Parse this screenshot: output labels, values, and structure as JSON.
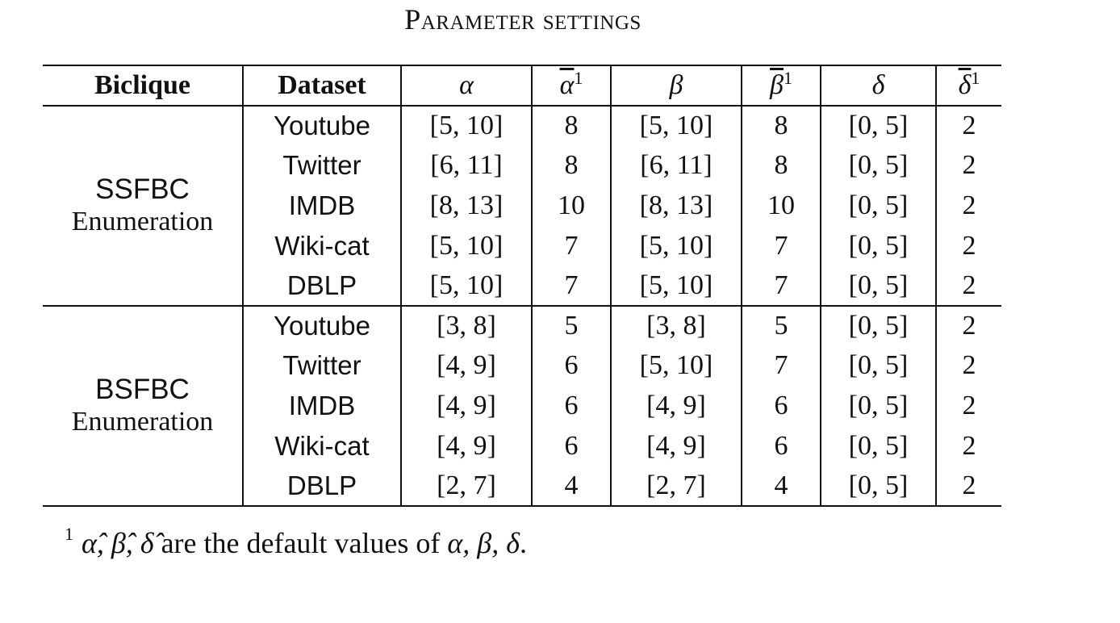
{
  "caption": "Parameter settings",
  "table": {
    "headers": {
      "biclique": "Biclique",
      "dataset": "Dataset",
      "alpha": "α",
      "alpha_bar": "α",
      "beta": "β",
      "beta_bar": "β",
      "delta": "δ",
      "delta_bar": "δ",
      "footnote_mark": "1"
    },
    "groups": [
      {
        "name": "SSFBC",
        "sub": "Enumeration",
        "rows": [
          {
            "dataset": "Youtube",
            "alpha": "[5, 10]",
            "alpha_bar": "8",
            "beta": "[5, 10]",
            "beta_bar": "8",
            "delta": "[0, 5]",
            "delta_bar": "2"
          },
          {
            "dataset": "Twitter",
            "alpha": "[6, 11]",
            "alpha_bar": "8",
            "beta": "[6, 11]",
            "beta_bar": "8",
            "delta": "[0, 5]",
            "delta_bar": "2"
          },
          {
            "dataset": "IMDB",
            "alpha": "[8, 13]",
            "alpha_bar": "10",
            "beta": "[8, 13]",
            "beta_bar": "10",
            "delta": "[0, 5]",
            "delta_bar": "2"
          },
          {
            "dataset": "Wiki-cat",
            "alpha": "[5, 10]",
            "alpha_bar": "7",
            "beta": "[5, 10]",
            "beta_bar": "7",
            "delta": "[0, 5]",
            "delta_bar": "2"
          },
          {
            "dataset": "DBLP",
            "alpha": "[5, 10]",
            "alpha_bar": "7",
            "beta": "[5, 10]",
            "beta_bar": "7",
            "delta": "[0, 5]",
            "delta_bar": "2"
          }
        ]
      },
      {
        "name": "BSFBC",
        "sub": "Enumeration",
        "rows": [
          {
            "dataset": "Youtube",
            "alpha": "[3, 8]",
            "alpha_bar": "5",
            "beta": "[3, 8]",
            "beta_bar": "5",
            "delta": "[0, 5]",
            "delta_bar": "2"
          },
          {
            "dataset": "Twitter",
            "alpha": "[4, 9]",
            "alpha_bar": "6",
            "beta": "[5, 10]",
            "beta_bar": "7",
            "delta": "[0, 5]",
            "delta_bar": "2"
          },
          {
            "dataset": "IMDB",
            "alpha": "[4, 9]",
            "alpha_bar": "6",
            "beta": "[4, 9]",
            "beta_bar": "6",
            "delta": "[0, 5]",
            "delta_bar": "2"
          },
          {
            "dataset": "Wiki-cat",
            "alpha": "[4, 9]",
            "alpha_bar": "6",
            "beta": "[4, 9]",
            "beta_bar": "6",
            "delta": "[0, 5]",
            "delta_bar": "2"
          },
          {
            "dataset": "DBLP",
            "alpha": "[2, 7]",
            "alpha_bar": "4",
            "beta": "[2, 7]",
            "beta_bar": "4",
            "delta": "[0, 5]",
            "delta_bar": "2"
          }
        ]
      }
    ]
  },
  "footnote": {
    "mark": "1",
    "symbols": "α̂, β̂, δ̂",
    "text_mid": " are the default values of ",
    "params": "α, β, δ",
    "text_end": "."
  }
}
